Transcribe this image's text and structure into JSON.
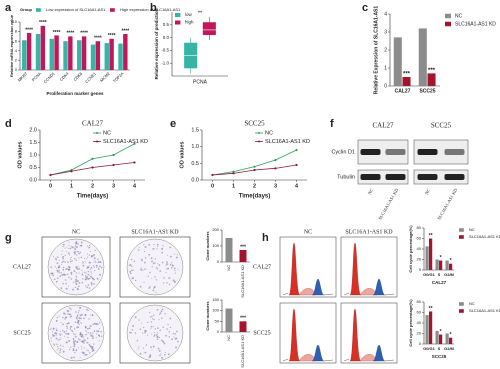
{
  "chart_data": [
    {
      "type": "bar",
      "legend_title": "Group",
      "legend": "top",
      "xlabel": "Proliferation marker genes",
      "ylabel": "Relative mRNA expression value",
      "categories": [
        "MKI67",
        "PCNA",
        "CCND1",
        "CDK4",
        "CDK6",
        "CCNE1",
        "MCM2",
        "TOP2A"
      ],
      "xtick_rotation": 45,
      "series": [
        {
          "name": "Low expression of SLC16A1-AS1",
          "color": "#36b5a6",
          "values": [
            6.2,
            7.5,
            6.5,
            6.0,
            6.2,
            5.3,
            5.6,
            5.5
          ]
        },
        {
          "name": "High expression of SLC16A1-AS1",
          "color": "#c2185b",
          "values": [
            7.7,
            9.2,
            7.2,
            7.0,
            7.0,
            6.0,
            6.5,
            7.5
          ]
        }
      ],
      "significance": [
        "****",
        "****",
        "****",
        "****",
        "****",
        "****",
        "****",
        "****"
      ],
      "ylim": [
        0,
        10
      ],
      "yticks": [
        0,
        2,
        4,
        6,
        8,
        10
      ]
    },
    {
      "type": "box",
      "legend": "top-left",
      "ylabel": "Relative expression of prediction",
      "categories": [
        "PCNA"
      ],
      "series": [
        {
          "name": "low",
          "color": "#36b5a6",
          "whisker_low": -1.4,
          "q1": -1.2,
          "median": -0.7,
          "q3": -0.2,
          "whisker_high": 0.0
        },
        {
          "name": "high",
          "color": "#c2185b",
          "whisker_low": -0.1,
          "q1": 0.1,
          "median": 0.3,
          "q3": 0.6,
          "whisker_high": 0.8
        }
      ],
      "significance": [
        "**"
      ],
      "ylim": [
        -1.5,
        1.0
      ],
      "yticks": [
        {
          "value": -1,
          "label": "-1.0"
        },
        -0.5,
        {
          "value": 0,
          "label": "0.0"
        },
        0.5
      ]
    },
    {
      "type": "bar",
      "legend": "right",
      "ylabel": "Relative Expression of SLC16A1-AS1",
      "categories": [
        "CAL27",
        "SCC25"
      ],
      "series": [
        {
          "name": "NC",
          "color": "#8c8c8c",
          "values": [
            2.7,
            3.2
          ]
        },
        {
          "name": "SLC16A1-AS1 KD",
          "color": "#a3142e",
          "values": [
            0.5,
            0.7
          ]
        }
      ],
      "significance": [
        "***",
        "***"
      ],
      "ylim": [
        0,
        4
      ],
      "yticks": [
        0,
        1,
        2,
        3,
        4
      ]
    },
    {
      "type": "line",
      "title": "CAL27",
      "legend": "top-right",
      "xlabel": "Time(days)",
      "ylabel": "OD values",
      "x": [
        0,
        1,
        2,
        3,
        4
      ],
      "series": [
        {
          "name": "NC",
          "color": "#2e9e5b",
          "values": [
            0.2,
            0.4,
            0.85,
            1.0,
            1.45
          ]
        },
        {
          "name": "SLC16A1-AS1 KD",
          "color": "#8b1a3a",
          "values": [
            0.2,
            0.35,
            0.5,
            0.6,
            0.7
          ]
        }
      ],
      "xlim": [
        -0.5,
        4.5
      ],
      "xticks": [
        0,
        1,
        2,
        3,
        4
      ],
      "ylim": [
        0,
        2
      ],
      "yticks": [
        {
          "value": 0,
          "label": "0.0"
        },
        0.5,
        {
          "value": 1,
          "label": "1.0"
        },
        1.5,
        {
          "value": 2,
          "label": "2.0"
        }
      ]
    },
    {
      "type": "line",
      "title": "SCC25",
      "legend": "top-right",
      "xlabel": "Time(days)",
      "ylabel": "OD values",
      "x": [
        0,
        1,
        2,
        3,
        4
      ],
      "series": [
        {
          "name": "NC",
          "color": "#2e9e5b",
          "values": [
            0.15,
            0.25,
            0.4,
            0.6,
            0.9
          ]
        },
        {
          "name": "SLC16A1-AS1 KD",
          "color": "#8b1a3a",
          "values": [
            0.15,
            0.2,
            0.3,
            0.35,
            0.45
          ]
        }
      ],
      "xlim": [
        -0.5,
        4.5
      ],
      "xticks": [
        0,
        1,
        2,
        3,
        4
      ],
      "ylim": [
        0,
        1.5
      ],
      "yticks": [
        {
          "value": 0,
          "label": "0.0"
        },
        0.5,
        {
          "value": 1,
          "label": "1.0"
        },
        1.5
      ]
    },
    {
      "type": "bar",
      "ylabel": "Clone numbers",
      "categories": [
        "NC",
        "SLC16A1-AS1 KD"
      ],
      "xtick_rotation": 90,
      "values": [
        150,
        75
      ],
      "colors": [
        "#8c8c8c",
        "#a3142e"
      ],
      "significance": [
        null,
        "***"
      ],
      "ylim": [
        0,
        200
      ],
      "yticks": [
        0,
        100,
        200
      ]
    },
    {
      "type": "bar",
      "ylabel": "Clone numbers",
      "categories": [
        "NC",
        "SLC16A1-AS1 KD"
      ],
      "xtick_rotation": 90,
      "values": [
        110,
        50
      ],
      "colors": [
        "#8c8c8c",
        "#a3142e"
      ],
      "significance": [
        null,
        "***"
      ],
      "ylim": [
        0,
        150
      ],
      "yticks": [
        0,
        50,
        100,
        150
      ]
    },
    {
      "type": "bar",
      "legend": "right",
      "xlabel": "CAL27",
      "ylabel": "Cell cycle percentage(%)",
      "categories": [
        "G0/G1",
        "S",
        "G2/M"
      ],
      "series": [
        {
          "name": "NC",
          "color": "#8c8c8c",
          "values": [
            45,
            20,
            18
          ]
        },
        {
          "name": "SLC16A1-AS1 KD",
          "color": "#a3142e",
          "values": [
            60,
            18,
            12
          ]
        }
      ],
      "significance": [
        "**",
        "*",
        "*"
      ],
      "ylim": [
        0,
        80
      ],
      "yticks": [
        0,
        20,
        40,
        60,
        80
      ]
    },
    {
      "type": "bar",
      "legend": "right",
      "xlabel": "SCC25",
      "ylabel": "Cell cycle percentage(%)",
      "categories": [
        "G0/G1",
        "S",
        "G2/M"
      ],
      "series": [
        {
          "name": "NC",
          "color": "#8c8c8c",
          "values": [
            55,
            25,
            20
          ]
        },
        {
          "name": "SLC16A1-AS1 KD",
          "color": "#a3142e",
          "values": [
            62,
            18,
            12
          ]
        }
      ],
      "significance": [
        "**",
        "*",
        "*"
      ],
      "ylim": [
        0,
        80
      ],
      "yticks": [
        0,
        20,
        40,
        60,
        80
      ]
    }
  ],
  "figure": {
    "panel_labels": [
      "a",
      "b",
      "c",
      "d",
      "e",
      "f",
      "g",
      "h"
    ],
    "blot": {
      "cells": [
        "CAL27",
        "SCC25"
      ],
      "proteins": [
        "Cyclin D1",
        "Tubulin"
      ],
      "lanes": [
        "NC",
        "SLC16A1-AS1 KD",
        "NC",
        "SLC16A1-AS1 KD"
      ]
    },
    "colony": {
      "columns": [
        "NC",
        "SLC16A1-AS1 KD"
      ],
      "rows": [
        "CAL27",
        "SCC25"
      ]
    },
    "flow": {
      "columns": [
        "NC",
        "SLC16A1-AS1 KD"
      ],
      "rows": [
        "CAL27",
        "SCC25"
      ]
    }
  }
}
